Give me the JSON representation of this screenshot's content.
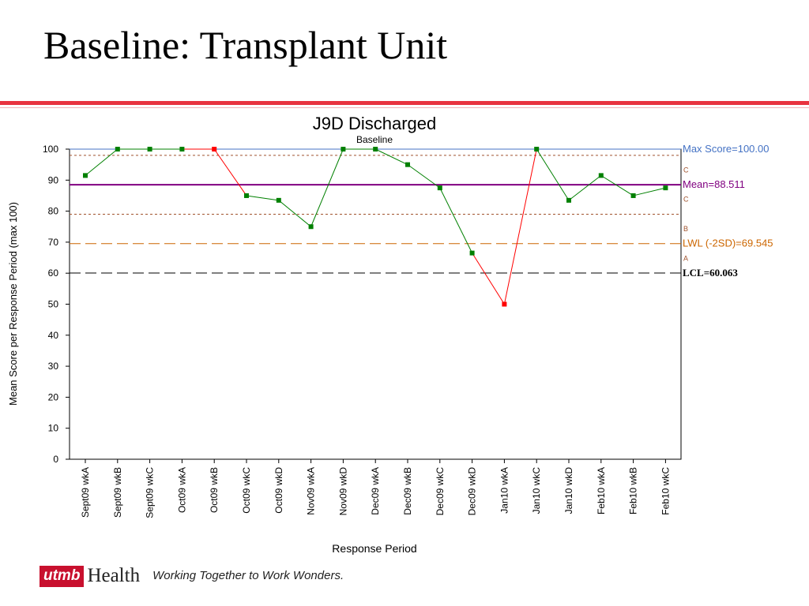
{
  "slide": {
    "title": "Baseline: Transplant Unit"
  },
  "footer": {
    "brand_mark": "utmb",
    "brand_name": "Health",
    "tagline": "Working Together to Work Wonders."
  },
  "colors": {
    "accent_red": "#e8333f",
    "point_in_control": "#008000",
    "point_out_of_control": "#ff0000",
    "max_line": "#4472c4",
    "mean_line": "#800080",
    "zone_line": "#a0522d",
    "lwl_line": "#cc6600",
    "lcl_line": "#000000"
  },
  "chart_data": {
    "type": "line",
    "title": "J9D Discharged",
    "subtitle": "Baseline",
    "xlabel": "Response Period",
    "ylabel": "Mean Score per Response Period (max 100)",
    "ylim": [
      0,
      100
    ],
    "yticks": [
      0,
      10,
      20,
      30,
      40,
      50,
      60,
      70,
      80,
      90,
      100
    ],
    "categories": [
      "Sept09 wkA",
      "Sept09 wkB",
      "Sept09 wkC",
      "Oct09 wkA",
      "Oct09 wkB",
      "Oct09 wkC",
      "Oct09 wkD",
      "Nov09 wkA",
      "Nov09 wkD",
      "Dec09 wkA",
      "Dec09 wkB",
      "Dec09 wkC",
      "Dec09 wkD",
      "Jan10 wkA",
      "Jan10 wkC",
      "Jan10 wkD",
      "Feb10 wkA",
      "Feb10 wkB",
      "Feb10 wkC"
    ],
    "values": [
      91.5,
      100,
      100,
      100,
      100,
      85,
      83.5,
      75,
      100,
      100,
      95,
      87.5,
      66.5,
      50,
      100,
      83.5,
      91.5,
      85,
      87.5
    ],
    "out_of_control": [
      false,
      false,
      false,
      false,
      true,
      false,
      false,
      false,
      false,
      false,
      false,
      false,
      false,
      true,
      false,
      false,
      false,
      false,
      false
    ],
    "grid": false,
    "reference_lines": [
      {
        "value": 100,
        "label": "Max Score=100.00",
        "style": "solid",
        "color": "#4472c4"
      },
      {
        "value": 88.511,
        "label": "Mean=88.511",
        "style": "solid",
        "color": "#800080"
      },
      {
        "value": 69.545,
        "label": "LWL (-2SD)=69.545",
        "style": "dashed",
        "color": "#cc6600"
      },
      {
        "value": 60.063,
        "label": "LCL=60.063",
        "style": "dashed",
        "color": "#000000"
      }
    ],
    "zone_lines": [
      {
        "value": 98.0,
        "color": "#a0522d"
      },
      {
        "value": 79.0,
        "color": "#a0522d"
      }
    ],
    "zone_labels": [
      {
        "label": "C",
        "value": 93.3
      },
      {
        "label": "C",
        "value": 83.8
      },
      {
        "label": "B",
        "value": 74.3
      },
      {
        "label": "A",
        "value": 64.8
      }
    ]
  }
}
